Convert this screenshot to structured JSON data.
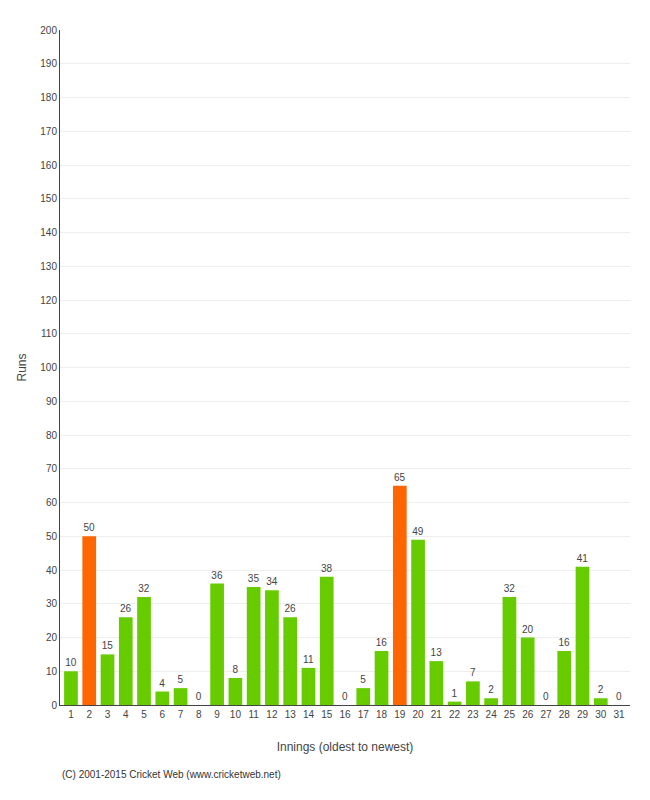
{
  "chart_data": {
    "type": "bar",
    "categories": [
      "1",
      "2",
      "3",
      "4",
      "5",
      "6",
      "7",
      "8",
      "9",
      "10",
      "11",
      "12",
      "13",
      "14",
      "15",
      "16",
      "17",
      "18",
      "19",
      "20",
      "21",
      "22",
      "23",
      "24",
      "25",
      "26",
      "27",
      "28",
      "29",
      "30",
      "31"
    ],
    "values": [
      10,
      50,
      15,
      26,
      32,
      4,
      5,
      0,
      36,
      8,
      35,
      34,
      26,
      11,
      38,
      0,
      5,
      16,
      65,
      49,
      13,
      1,
      7,
      2,
      32,
      20,
      0,
      16,
      41,
      2,
      0
    ],
    "colors": [
      "#66cc00",
      "#ff6600",
      "#66cc00",
      "#66cc00",
      "#66cc00",
      "#66cc00",
      "#66cc00",
      "#66cc00",
      "#66cc00",
      "#66cc00",
      "#66cc00",
      "#66cc00",
      "#66cc00",
      "#66cc00",
      "#66cc00",
      "#66cc00",
      "#66cc00",
      "#66cc00",
      "#ff6600",
      "#66cc00",
      "#66cc00",
      "#66cc00",
      "#66cc00",
      "#66cc00",
      "#66cc00",
      "#66cc00",
      "#66cc00",
      "#66cc00",
      "#66cc00",
      "#66cc00",
      "#66cc00"
    ],
    "xlabel": "Innings (oldest to newest)",
    "ylabel": "Runs",
    "ylim": [
      0,
      200
    ],
    "yticks": [
      0,
      10,
      20,
      30,
      40,
      50,
      60,
      70,
      80,
      90,
      100,
      110,
      120,
      130,
      140,
      150,
      160,
      170,
      180,
      190,
      200
    ],
    "grid": true,
    "data_labels": true,
    "annotations": [
      "(C) 2001-2015 Cricket Web (www.cricketweb.net)"
    ]
  }
}
